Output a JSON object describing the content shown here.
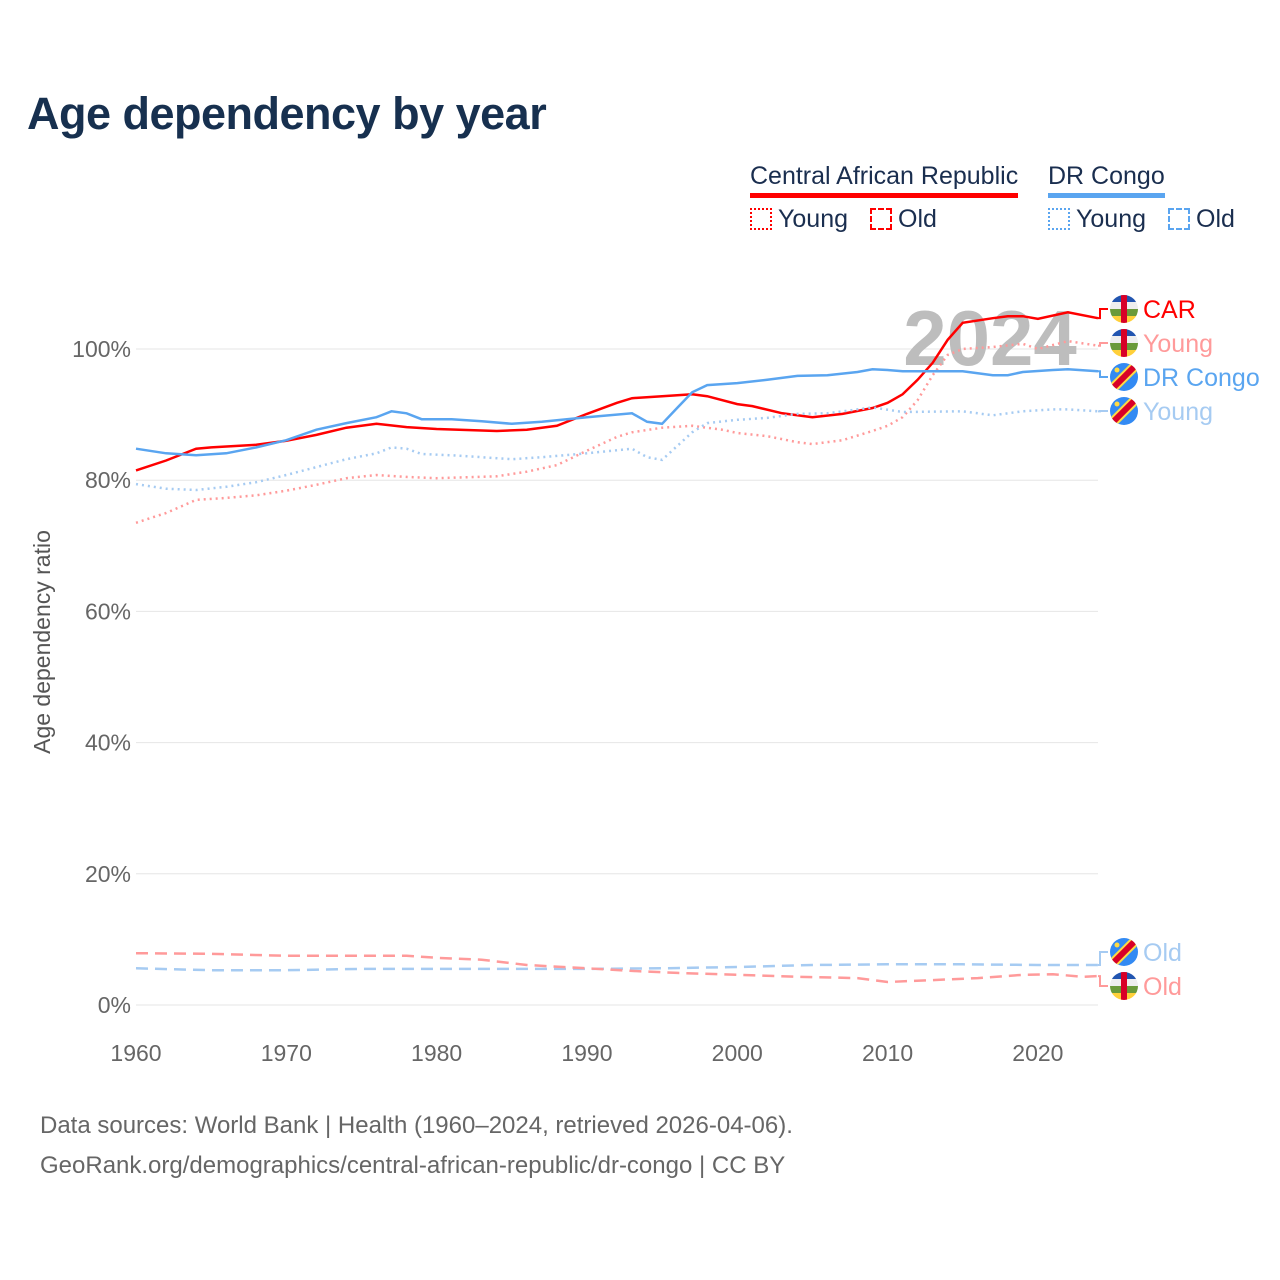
{
  "title": "Age dependency by year",
  "legend": {
    "countries": [
      {
        "name": "Central African Republic",
        "color": "#ff0000",
        "young": "Young",
        "old": "Old"
      },
      {
        "name": "DR Congo",
        "color": "#5aa5f0",
        "young": "Young",
        "old": "Old"
      }
    ]
  },
  "footer": {
    "line1": "Data sources: World Bank | Health (1960–2024, retrieved 2026-04-06).",
    "line2": "GeoRank.org/demographics/central-african-republic/dr-congo | CC BY"
  },
  "chart_data": {
    "type": "line",
    "title": "Age dependency by year",
    "xlabel": "",
    "ylabel": "Age dependency ratio",
    "xlim": [
      1960,
      2024
    ],
    "ylim": [
      0,
      105
    ],
    "xticks": [
      1960,
      1970,
      1980,
      1990,
      2000,
      2010,
      2020
    ],
    "yticks": [
      0,
      20,
      40,
      60,
      80,
      100
    ],
    "ytick_labels": [
      "0%",
      "20%",
      "40%",
      "60%",
      "80%",
      "100%"
    ],
    "grid": true,
    "year_watermark": "2024",
    "series": [
      {
        "name": "CAR",
        "country": "Central African Republic",
        "kind": "total",
        "color": "#ff0000",
        "style": "solid",
        "points": [
          [
            1960,
            81.5
          ],
          [
            1962,
            83
          ],
          [
            1964,
            84.8
          ],
          [
            1965,
            85
          ],
          [
            1968,
            85.4
          ],
          [
            1970,
            86
          ],
          [
            1972,
            86.9
          ],
          [
            1974,
            88
          ],
          [
            1976,
            88.6
          ],
          [
            1978,
            88.1
          ],
          [
            1980,
            87.8
          ],
          [
            1984,
            87.5
          ],
          [
            1986,
            87.7
          ],
          [
            1988,
            88.3
          ],
          [
            1990,
            90.1
          ],
          [
            1992,
            91.8
          ],
          [
            1993,
            92.5
          ],
          [
            1995,
            92.8
          ],
          [
            1997,
            93.1
          ],
          [
            1998,
            92.8
          ],
          [
            2000,
            91.6
          ],
          [
            2001,
            91.3
          ],
          [
            2003,
            90.2
          ],
          [
            2005,
            89.6
          ],
          [
            2007,
            90.1
          ],
          [
            2009,
            91
          ],
          [
            2010,
            91.8
          ],
          [
            2011,
            93.1
          ],
          [
            2012,
            95.3
          ],
          [
            2013,
            97.9
          ],
          [
            2014,
            101.4
          ],
          [
            2015,
            104
          ],
          [
            2017,
            104.7
          ],
          [
            2018,
            105
          ],
          [
            2019,
            105
          ],
          [
            2020,
            104.6
          ],
          [
            2022,
            105.6
          ],
          [
            2024,
            104.7
          ]
        ]
      },
      {
        "name": "Young",
        "country": "Central African Republic",
        "kind": "young",
        "color": "#ff9a9a",
        "style": "dotted",
        "points": [
          [
            1960,
            73.5
          ],
          [
            1962,
            75
          ],
          [
            1964,
            77
          ],
          [
            1966,
            77.3
          ],
          [
            1968,
            77.7
          ],
          [
            1970,
            78.4
          ],
          [
            1972,
            79.3
          ],
          [
            1974,
            80.3
          ],
          [
            1976,
            80.8
          ],
          [
            1978,
            80.5
          ],
          [
            1980,
            80.3
          ],
          [
            1984,
            80.6
          ],
          [
            1986,
            81.3
          ],
          [
            1988,
            82.3
          ],
          [
            1990,
            84.5
          ],
          [
            1992,
            86.6
          ],
          [
            1993,
            87.3
          ],
          [
            1995,
            88
          ],
          [
            1997,
            88.3
          ],
          [
            1999,
            87.7
          ],
          [
            2000,
            87.2
          ],
          [
            2002,
            86.7
          ],
          [
            2004,
            85.8
          ],
          [
            2005,
            85.5
          ],
          [
            2007,
            86.1
          ],
          [
            2009,
            87.5
          ],
          [
            2010,
            88.3
          ],
          [
            2011,
            89.6
          ],
          [
            2012,
            92.2
          ],
          [
            2013,
            96
          ],
          [
            2014,
            99.1
          ],
          [
            2015,
            100
          ],
          [
            2017,
            100.3
          ],
          [
            2019,
            100.8
          ],
          [
            2020,
            100
          ],
          [
            2022,
            101.2
          ],
          [
            2024,
            100.5
          ]
        ]
      },
      {
        "name": "DR Congo",
        "country": "DR Congo",
        "kind": "total",
        "color": "#5aa5f0",
        "style": "solid",
        "points": [
          [
            1960,
            84.8
          ],
          [
            1962,
            84.1
          ],
          [
            1964,
            83.8
          ],
          [
            1966,
            84.1
          ],
          [
            1968,
            85
          ],
          [
            1970,
            86.1
          ],
          [
            1972,
            87.7
          ],
          [
            1974,
            88.7
          ],
          [
            1976,
            89.6
          ],
          [
            1977,
            90.5
          ],
          [
            1978,
            90.2
          ],
          [
            1979,
            89.3
          ],
          [
            1981,
            89.3
          ],
          [
            1983,
            89
          ],
          [
            1985,
            88.6
          ],
          [
            1987,
            88.9
          ],
          [
            1990,
            89.6
          ],
          [
            1993,
            90.2
          ],
          [
            1994,
            88.9
          ],
          [
            1995,
            88.6
          ],
          [
            1996,
            91
          ],
          [
            1997,
            93.4
          ],
          [
            1998,
            94.5
          ],
          [
            2000,
            94.8
          ],
          [
            2002,
            95.3
          ],
          [
            2004,
            95.9
          ],
          [
            2006,
            96
          ],
          [
            2008,
            96.5
          ],
          [
            2009,
            96.9
          ],
          [
            2010,
            96.8
          ],
          [
            2011,
            96.6
          ],
          [
            2015,
            96.6
          ],
          [
            2017,
            96
          ],
          [
            2018,
            96
          ],
          [
            2019,
            96.5
          ],
          [
            2021,
            96.8
          ],
          [
            2022,
            96.9
          ],
          [
            2024,
            96.6
          ]
        ]
      },
      {
        "name": "Young",
        "country": "DR Congo",
        "kind": "young",
        "color": "#a6cbf2",
        "style": "dotted",
        "points": [
          [
            1960,
            79.4
          ],
          [
            1962,
            78.7
          ],
          [
            1964,
            78.5
          ],
          [
            1966,
            79
          ],
          [
            1968,
            79.7
          ],
          [
            1970,
            80.8
          ],
          [
            1972,
            82
          ],
          [
            1974,
            83.2
          ],
          [
            1976,
            84.1
          ],
          [
            1977,
            85
          ],
          [
            1978,
            84.8
          ],
          [
            1979,
            84
          ],
          [
            1981,
            83.8
          ],
          [
            1983,
            83.5
          ],
          [
            1985,
            83.2
          ],
          [
            1987,
            83.5
          ],
          [
            1990,
            84.1
          ],
          [
            1993,
            84.8
          ],
          [
            1994,
            83.5
          ],
          [
            1995,
            83.1
          ],
          [
            1996,
            85.2
          ],
          [
            1997,
            87.3
          ],
          [
            1998,
            88.7
          ],
          [
            2000,
            89.2
          ],
          [
            2002,
            89.5
          ],
          [
            2004,
            90.1
          ],
          [
            2006,
            90.2
          ],
          [
            2008,
            90.8
          ],
          [
            2009,
            91.1
          ],
          [
            2011,
            90.4
          ],
          [
            2015,
            90.5
          ],
          [
            2017,
            89.9
          ],
          [
            2019,
            90.5
          ],
          [
            2021,
            90.8
          ],
          [
            2022,
            90.8
          ],
          [
            2024,
            90.5
          ]
        ]
      },
      {
        "name": "Old",
        "country": "DR Congo",
        "kind": "old",
        "color": "#a6cbf2",
        "style": "dashed",
        "points": [
          [
            1960,
            5.6
          ],
          [
            1965,
            5.3
          ],
          [
            1970,
            5.3
          ],
          [
            1975,
            5.5
          ],
          [
            1980,
            5.5
          ],
          [
            1990,
            5.5
          ],
          [
            1995,
            5.6
          ],
          [
            2000,
            5.8
          ],
          [
            2005,
            6.1
          ],
          [
            2010,
            6.2
          ],
          [
            2015,
            6.2
          ],
          [
            2020,
            6.1
          ],
          [
            2024,
            6.1
          ]
        ]
      },
      {
        "name": "Old",
        "country": "Central African Republic",
        "kind": "old",
        "color": "#ff9a9a",
        "style": "dashed",
        "points": [
          [
            1960,
            7.9
          ],
          [
            1965,
            7.8
          ],
          [
            1970,
            7.5
          ],
          [
            1975,
            7.5
          ],
          [
            1978,
            7.5
          ],
          [
            1980,
            7.2
          ],
          [
            1983,
            6.9
          ],
          [
            1986,
            6.1
          ],
          [
            1990,
            5.6
          ],
          [
            1993,
            5.2
          ],
          [
            1996,
            4.9
          ],
          [
            2000,
            4.6
          ],
          [
            2004,
            4.3
          ],
          [
            2008,
            4.1
          ],
          [
            2010,
            3.5
          ],
          [
            2013,
            3.8
          ],
          [
            2016,
            4.1
          ],
          [
            2019,
            4.6
          ],
          [
            2021,
            4.7
          ],
          [
            2023,
            4.3
          ],
          [
            2024,
            4.4
          ]
        ]
      }
    ]
  }
}
